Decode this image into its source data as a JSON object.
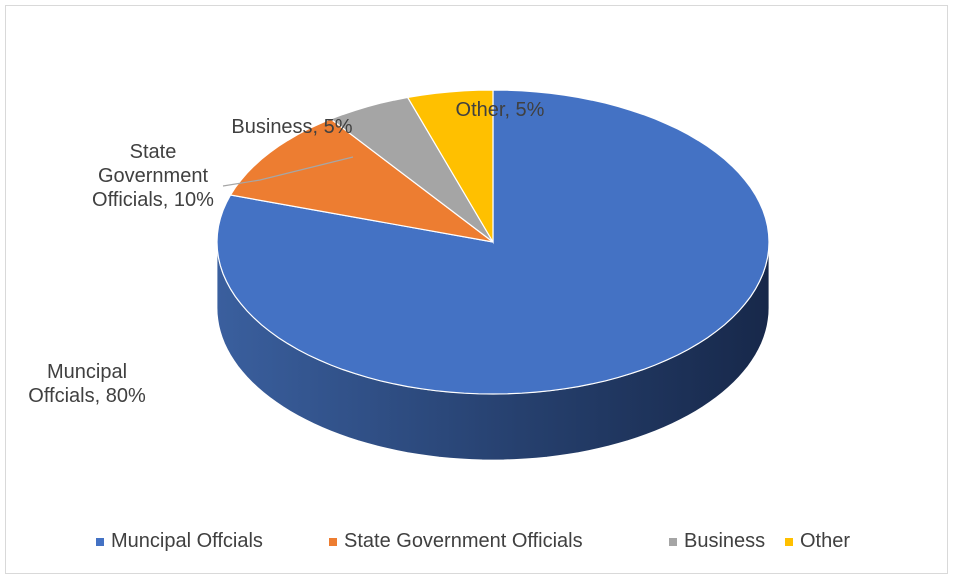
{
  "chart_data": {
    "type": "pie",
    "style": "3d",
    "categories": [
      "Muncipal Offcials",
      "State Government Officials",
      "Business",
      "Other"
    ],
    "values": [
      80,
      10,
      5,
      5
    ],
    "colors": [
      "#4472C4",
      "#ED7D31",
      "#A5A5A5",
      "#FFC000"
    ],
    "data_labels": [
      [
        "Muncipal",
        "Offcials, 80%"
      ],
      [
        "State",
        "Government",
        "Officials, 10%"
      ],
      [
        "Business, 5%"
      ],
      [
        "Other, 5%"
      ]
    ],
    "legend": {
      "position": "bottom"
    }
  }
}
